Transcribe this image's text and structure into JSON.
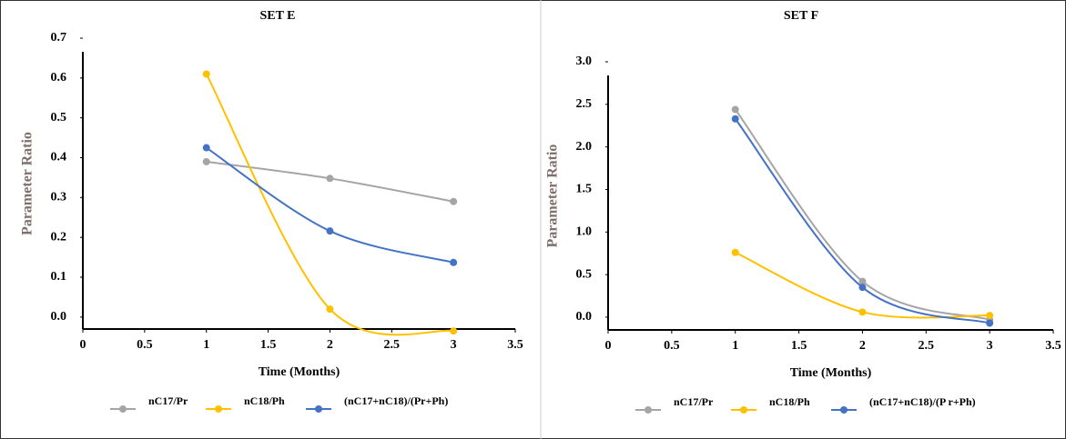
{
  "chart_data": [
    {
      "type": "line",
      "title": "SET E",
      "x_label": "Time (Months)",
      "y_label": "Parameter Ratio",
      "x": [
        1,
        2,
        3
      ],
      "series": [
        {
          "name": "nC17/Pr",
          "color": "#a5a5a5",
          "values": [
            0.39,
            0.348,
            0.29
          ]
        },
        {
          "name": "nC18/Ph",
          "color": "#ffc000",
          "values": [
            0.61,
            0.02,
            -0.035
          ]
        },
        {
          "name": "(nC17+nC18)/(Pr+Ph)",
          "color": "#4472c4",
          "values": [
            0.425,
            0.216,
            0.137
          ]
        }
      ],
      "xlim": [
        0,
        3.5
      ],
      "xticks": [
        0,
        0.5,
        1,
        1.5,
        2,
        2.5,
        3,
        3.5
      ],
      "ylim": [
        -0.03,
        0.7
      ],
      "yticks": [
        {
          "value": 0,
          "label": "0.0"
        },
        0.1,
        0.2,
        0.3,
        0.4,
        0.5,
        0.6,
        0.7
      ]
    },
    {
      "type": "line",
      "title": "SET F",
      "x_label": "Time (Months)",
      "y_label": "Parameter Ratio",
      "x": [
        1,
        2,
        3
      ],
      "series": [
        {
          "name": "nC17/Pr",
          "color": "#a5a5a5",
          "values": [
            2.44,
            0.42,
            -0.03
          ]
        },
        {
          "name": "nC18/Ph",
          "color": "#ffc000",
          "values": [
            0.76,
            0.06,
            0.02
          ]
        },
        {
          "name": "(nC17+nC18)/(P r+Ph)",
          "color": "#4472c4",
          "values": [
            2.33,
            0.35,
            -0.07
          ]
        }
      ],
      "xlim": [
        0,
        3.5
      ],
      "xticks": [
        0,
        0.5,
        1,
        1.5,
        2,
        2.5,
        3,
        3.5
      ],
      "ylim": [
        -0.15,
        3.0
      ],
      "yticks": [
        {
          "value": 0,
          "label": "0.0"
        },
        0.5,
        {
          "value": 1,
          "label": "1.0"
        },
        1.5,
        {
          "value": 2,
          "label": "2.0"
        },
        2.5,
        {
          "value": 3,
          "label": "3.0"
        }
      ]
    }
  ]
}
